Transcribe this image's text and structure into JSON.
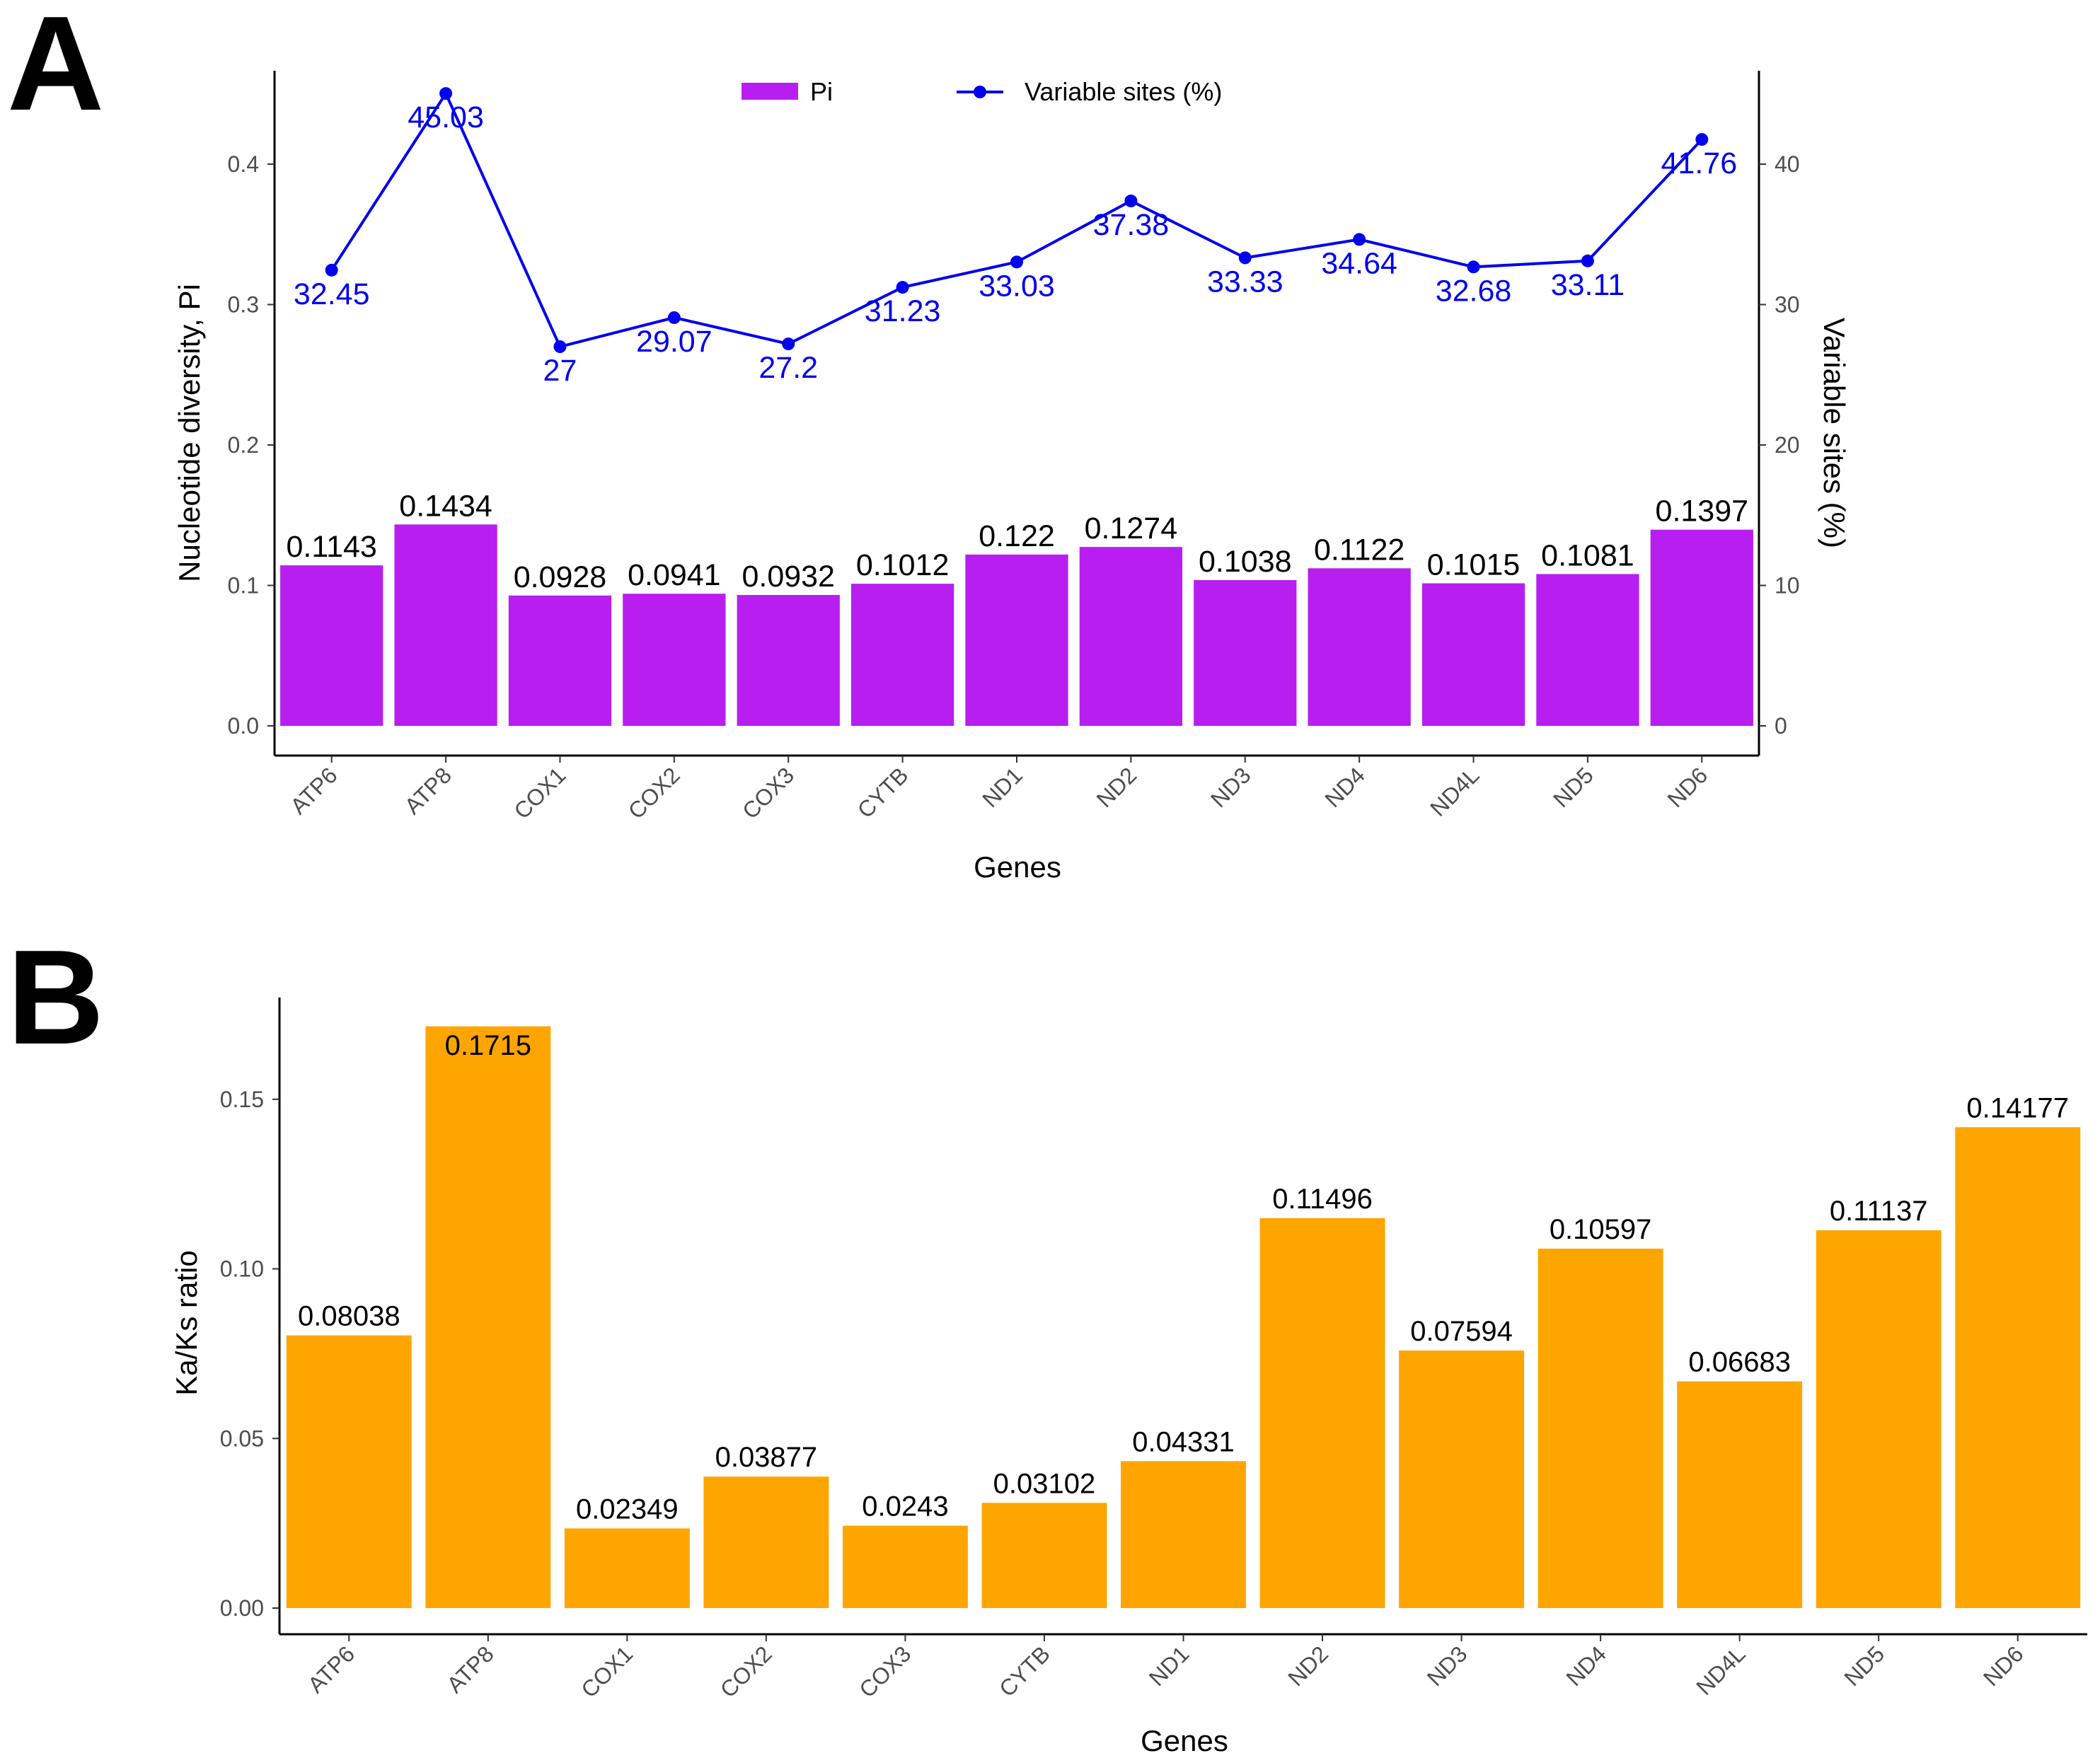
{
  "chart_data": [
    {
      "panel": "A",
      "type": "bar",
      "categories": [
        "ATP6",
        "ATP8",
        "COX1",
        "COX2",
        "COX3",
        "CYTB",
        "ND1",
        "ND2",
        "ND3",
        "ND4",
        "ND4L",
        "ND5",
        "ND6"
      ],
      "series": [
        {
          "name": "Pi",
          "type": "bar",
          "axis": "left",
          "color": "#b81ef0",
          "values": [
            0.1143,
            0.1434,
            0.0928,
            0.0941,
            0.0932,
            0.1012,
            0.122,
            0.1274,
            0.1038,
            0.1122,
            0.1015,
            0.1081,
            0.1397
          ],
          "labels": [
            "0.1143",
            "0.1434",
            "0.0928",
            "0.0941",
            "0.0932",
            "0.1012",
            "0.122",
            "0.1274",
            "0.1038",
            "0.1122",
            "0.1015",
            "0.1081",
            "0.1397"
          ]
        },
        {
          "name": "Variable sites (%)",
          "type": "line",
          "axis": "right",
          "color": "#0000ee",
          "values": [
            32.45,
            45.03,
            27,
            29.07,
            27.2,
            31.23,
            33.03,
            37.38,
            33.33,
            34.64,
            32.68,
            33.11,
            41.76
          ],
          "labels": [
            "32.45",
            "45.03",
            "27",
            "29.07",
            "27.2",
            "31.23",
            "33.03",
            "37.38",
            "33.33",
            "34.64",
            "32.68",
            "33.11",
            "41.76"
          ]
        }
      ],
      "xlabel": "Genes",
      "ylabel": "Nucleotide diversity, Pi",
      "y2label": "Variable sites (%)",
      "ylim": [
        0,
        0.4665
      ],
      "y2lim": [
        0,
        46.65
      ],
      "yticks": [
        0.0,
        0.1,
        0.2,
        0.3,
        0.4
      ],
      "ytick_labels": [
        "0.0",
        "0.1",
        "0.2",
        "0.3",
        "0.4"
      ],
      "y2ticks": [
        0,
        10,
        20,
        30,
        40
      ],
      "y2tick_labels": [
        "0",
        "10",
        "20",
        "30",
        "40"
      ],
      "legend": [
        "Pi",
        "Variable sites (%)"
      ],
      "legend_position": "top",
      "grid": false
    },
    {
      "panel": "B",
      "type": "bar",
      "categories": [
        "ATP6",
        "ATP8",
        "COX1",
        "COX2",
        "COX3",
        "CYTB",
        "ND1",
        "ND2",
        "ND3",
        "ND4",
        "ND4L",
        "ND5",
        "ND6"
      ],
      "series": [
        {
          "name": "Ka/Ks ratio",
          "color": "#ffa500",
          "values": [
            0.08038,
            0.1715,
            0.02349,
            0.03877,
            0.0243,
            0.03102,
            0.04331,
            0.11496,
            0.07594,
            0.10597,
            0.06683,
            0.11137,
            0.14177
          ],
          "labels": [
            "0.08038",
            "0.1715",
            "0.02349",
            "0.03877",
            "0.0243",
            "0.03102",
            "0.04331",
            "0.11496",
            "0.07594",
            "0.10597",
            "0.06683",
            "0.11137",
            "0.14177"
          ]
        }
      ],
      "xlabel": "Genes",
      "ylabel": "Ka/Ks ratio",
      "ylim": [
        0,
        0.18
      ],
      "yticks": [
        0.0,
        0.05,
        0.1,
        0.15
      ],
      "ytick_labels": [
        "0.00",
        "0.05",
        "0.10",
        "0.15"
      ],
      "grid": false
    }
  ],
  "panels": {
    "a": {
      "label": "A"
    },
    "b": {
      "label": "B"
    }
  }
}
